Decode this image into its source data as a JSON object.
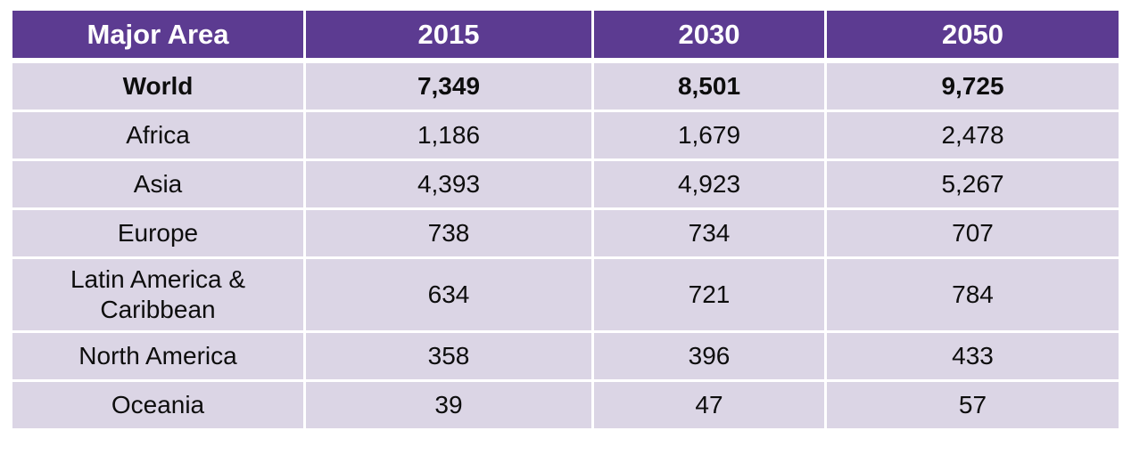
{
  "colors": {
    "header_bg": "#5C3B91",
    "header_text": "#FFFFFF",
    "row_bg": "#DBD5E5",
    "body_text": "#0D0D0D",
    "separator": "#FFFFFF",
    "page_bg": "#FFFFFF"
  },
  "chart_data": {
    "type": "table",
    "columns": [
      "Major Area",
      "2015",
      "2030",
      "2050"
    ],
    "x": [
      2015,
      2030,
      2050
    ],
    "series": [
      {
        "name": "World",
        "values": [
          7349,
          8501,
          9725
        ]
      },
      {
        "name": "Africa",
        "values": [
          1186,
          1679,
          2478
        ]
      },
      {
        "name": "Asia",
        "values": [
          4393,
          4923,
          5267
        ]
      },
      {
        "name": "Europe",
        "values": [
          738,
          734,
          707
        ]
      },
      {
        "name": "Latin America & Caribbean",
        "values": [
          634,
          721,
          784
        ]
      },
      {
        "name": "North America",
        "values": [
          358,
          396,
          433
        ]
      },
      {
        "name": "Oceania",
        "values": [
          39,
          47,
          57
        ]
      }
    ],
    "rows": [
      {
        "label": "World",
        "cells": [
          "7,349",
          "8,501",
          "9,725"
        ],
        "emphasis": true
      },
      {
        "label": "Africa",
        "cells": [
          "1,186",
          "1,679",
          "2,478"
        ],
        "emphasis": false
      },
      {
        "label": "Asia",
        "cells": [
          "4,393",
          "4,923",
          "5,267"
        ],
        "emphasis": false
      },
      {
        "label": "Europe",
        "cells": [
          "738",
          "734",
          "707"
        ],
        "emphasis": false
      },
      {
        "label": "Latin America & Caribbean",
        "cells": [
          "634",
          "721",
          "784"
        ],
        "emphasis": false
      },
      {
        "label": "North America",
        "cells": [
          "358",
          "396",
          "433"
        ],
        "emphasis": false
      },
      {
        "label": "Oceania",
        "cells": [
          "39",
          "47",
          "57"
        ],
        "emphasis": false
      }
    ]
  }
}
